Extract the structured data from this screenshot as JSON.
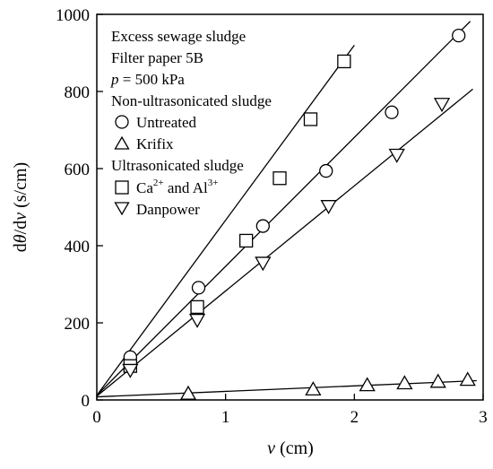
{
  "chart_data": {
    "type": "scatter",
    "xlabel": {
      "var": "v",
      "unit": "(cm)"
    },
    "ylabel": {
      "prefix": "d",
      "theta": "θ",
      "mid": "/d",
      "var": "v",
      "unit": "(s/cm)"
    },
    "xlim": [
      0,
      3
    ],
    "ylim": [
      0,
      1000
    ],
    "xticks": [
      0,
      1,
      2,
      3
    ],
    "yticks": [
      0,
      200,
      400,
      600,
      800,
      1000
    ],
    "grid": false,
    "legend_position": "top-left",
    "legend": {
      "header_lines": [
        "Excess sewage sludge",
        "Filter paper 5B"
      ],
      "pressure": {
        "var": "p",
        "rest": "= 500 kPa"
      },
      "groups": [
        {
          "label": "Non-ultrasonicated sludge",
          "entries": [
            "Untreated",
            "Krifix"
          ]
        },
        {
          "label": "Ultrasonicated sludge",
          "entries": [
            "Ca2+ and Al3+",
            "Danpower"
          ]
        }
      ],
      "ca_entry_parts": {
        "a": "Ca",
        "a_sup": "2+",
        "mid": " and Al",
        "b_sup": "3+"
      }
    },
    "series": [
      {
        "name": "Untreated",
        "marker": "circle",
        "x": [
          0.26,
          0.79,
          1.29,
          1.78,
          2.29,
          2.81
        ],
        "y": [
          111,
          291,
          451,
          594,
          746,
          945
        ],
        "fit": {
          "x": [
            0,
            2.9
          ],
          "y": [
            12,
            982
          ]
        }
      },
      {
        "name": "Krifix",
        "marker": "triangle-up",
        "x": [
          0.71,
          1.68,
          2.1,
          2.39,
          2.65,
          2.88
        ],
        "y": [
          16,
          27,
          38,
          43,
          47,
          52
        ],
        "fit": {
          "x": [
            0,
            2.95
          ],
          "y": [
            8,
            50
          ]
        }
      },
      {
        "name": "Ca2+ and Al3+",
        "marker": "square",
        "x": [
          0.26,
          0.78,
          1.16,
          1.42,
          1.66,
          1.92
        ],
        "y": [
          88,
          241,
          413,
          575,
          728,
          878
        ],
        "fit": {
          "x": [
            0,
            2.0
          ],
          "y": [
            12,
            920
          ]
        }
      },
      {
        "name": "Danpower",
        "marker": "triangle-down",
        "x": [
          0.26,
          0.78,
          1.29,
          1.8,
          2.33,
          2.68
        ],
        "y": [
          78,
          208,
          356,
          503,
          636,
          768
        ],
        "fit": {
          "x": [
            0,
            2.92
          ],
          "y": [
            10,
            806
          ]
        }
      }
    ]
  }
}
